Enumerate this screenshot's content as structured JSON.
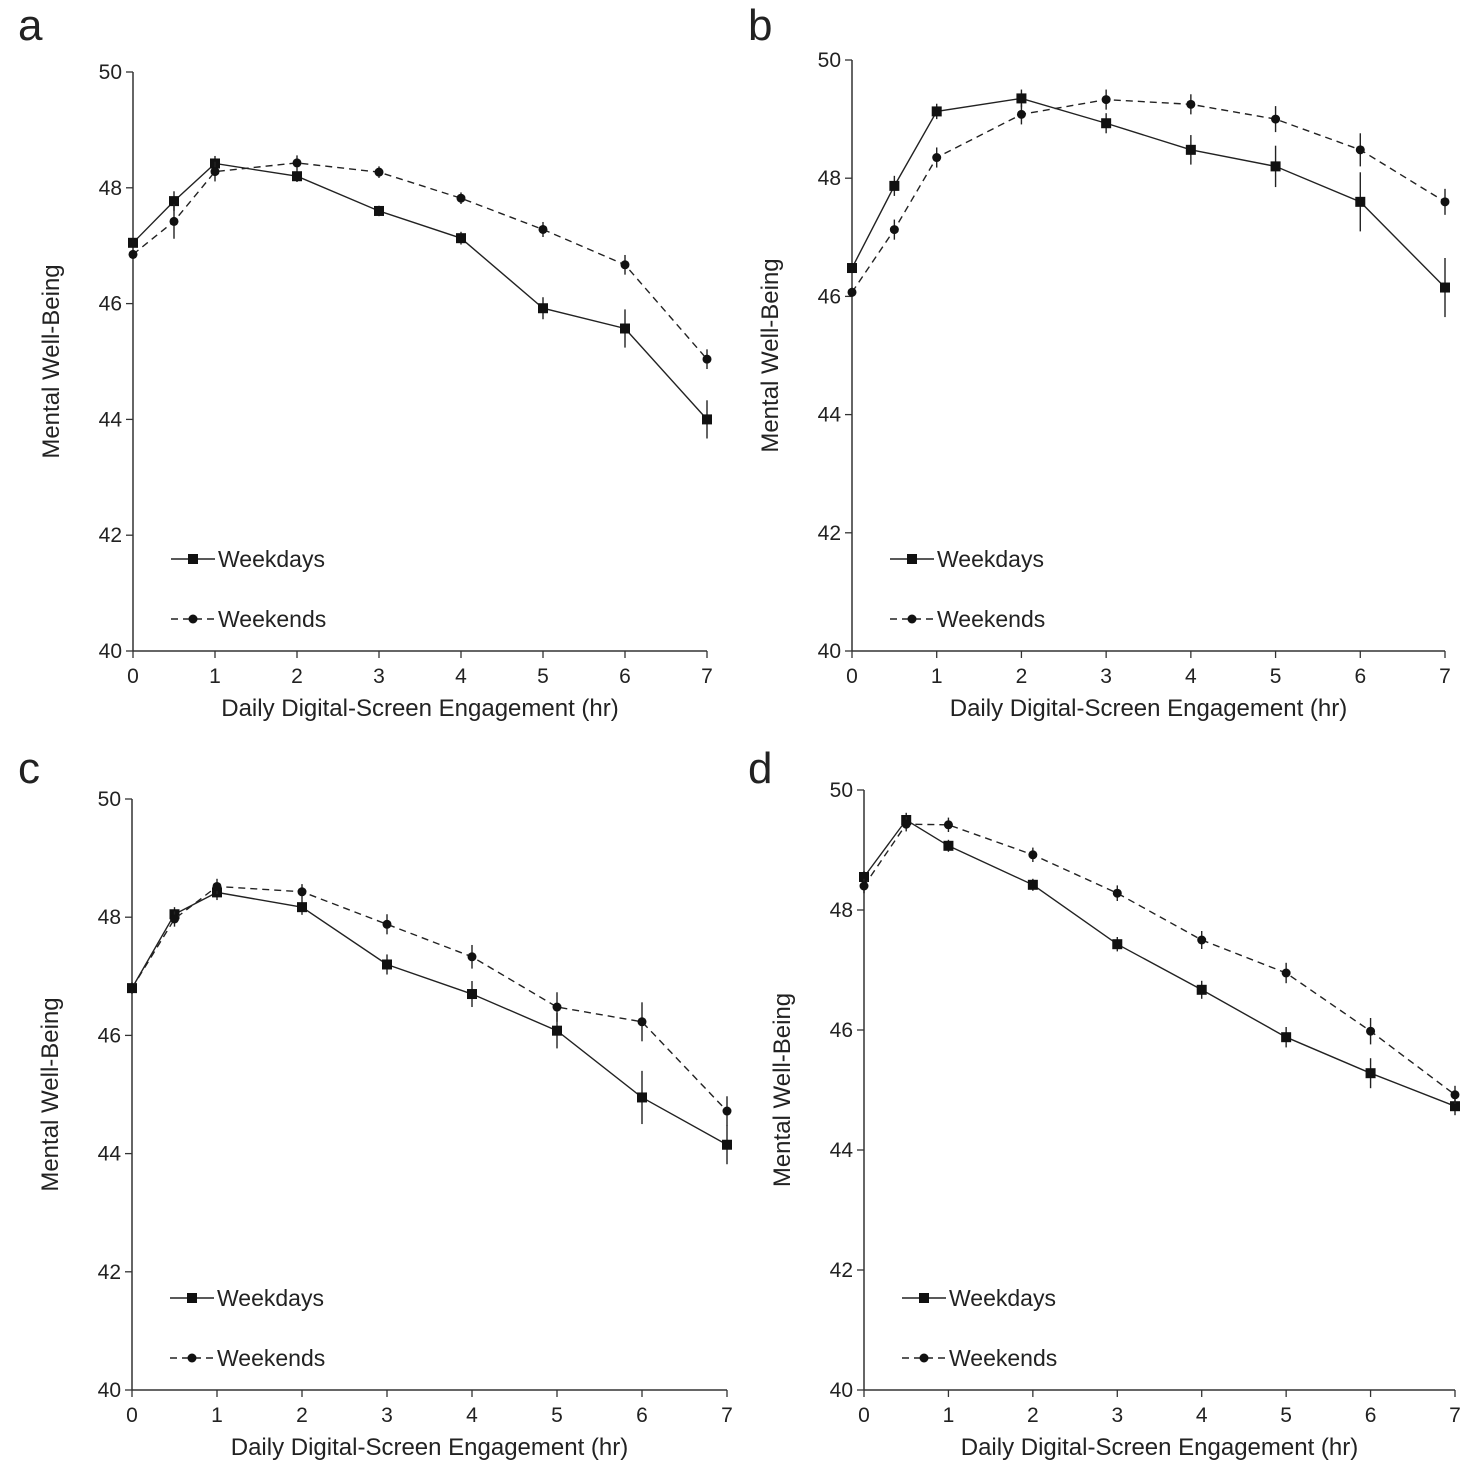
{
  "figure": {
    "legend": {
      "weekdays": "Weekdays",
      "weekends": "Weekends"
    }
  },
  "chart_data": [
    {
      "panel": "a",
      "type": "line",
      "xlabel": "Daily Digital-Screen Engagement (hr)",
      "ylabel": "Mental Well-Being",
      "xlim": [
        0,
        7
      ],
      "ylim": [
        40,
        50
      ],
      "x_ticks": [
        0,
        1,
        2,
        3,
        4,
        5,
        6,
        7
      ],
      "y_ticks": [
        40,
        42,
        44,
        46,
        48,
        50
      ],
      "legend_position": "bottom-left",
      "series": [
        {
          "name": "Weekdays",
          "style": "solid",
          "marker": "square",
          "x": [
            0,
            0.5,
            1,
            2,
            3,
            4,
            5,
            6,
            7
          ],
          "values": [
            47.05,
            47.77,
            48.42,
            48.2,
            47.6,
            47.13,
            45.92,
            45.57,
            44.0
          ],
          "errors": [
            0.08,
            0.17,
            0.13,
            0.1,
            0.09,
            0.11,
            0.19,
            0.33,
            0.33
          ]
        },
        {
          "name": "Weekends",
          "style": "dashed",
          "marker": "circle",
          "x": [
            0,
            0.5,
            1,
            2,
            3,
            4,
            5,
            6,
            7
          ],
          "values": [
            46.85,
            47.42,
            48.28,
            48.43,
            48.27,
            47.82,
            47.28,
            46.67,
            45.04
          ],
          "errors": [
            0.08,
            0.3,
            0.17,
            0.13,
            0.1,
            0.1,
            0.13,
            0.17,
            0.17
          ]
        }
      ]
    },
    {
      "panel": "b",
      "type": "line",
      "xlabel": "Daily Digital-Screen Engagement (hr)",
      "ylabel": "Mental Well-Being",
      "xlim": [
        0,
        7
      ],
      "ylim": [
        40,
        50
      ],
      "x_ticks": [
        0,
        1,
        2,
        3,
        4,
        5,
        6,
        7
      ],
      "y_ticks": [
        40,
        42,
        44,
        46,
        48,
        50
      ],
      "legend_position": "bottom-left",
      "series": [
        {
          "name": "Weekdays",
          "style": "solid",
          "marker": "square",
          "x": [
            0,
            0.5,
            1,
            2,
            3,
            4,
            5,
            6,
            7
          ],
          "values": [
            46.48,
            47.87,
            49.13,
            49.35,
            48.93,
            48.48,
            48.2,
            47.6,
            46.15
          ],
          "errors": [
            0.08,
            0.17,
            0.13,
            0.15,
            0.17,
            0.25,
            0.35,
            0.5,
            0.5
          ]
        },
        {
          "name": "Weekends",
          "style": "dashed",
          "marker": "circle",
          "x": [
            0,
            0.5,
            1,
            2,
            3,
            4,
            5,
            6,
            7
          ],
          "values": [
            46.07,
            47.13,
            48.35,
            49.08,
            49.33,
            49.25,
            49.0,
            48.48,
            47.6
          ],
          "errors": [
            0.08,
            0.17,
            0.17,
            0.17,
            0.17,
            0.17,
            0.22,
            0.28,
            0.22
          ]
        }
      ]
    },
    {
      "panel": "c",
      "type": "line",
      "xlabel": "Daily Digital-Screen Engagement (hr)",
      "ylabel": "Mental Well-Being",
      "xlim": [
        0,
        7
      ],
      "ylim": [
        40,
        50
      ],
      "x_ticks": [
        0,
        1,
        2,
        3,
        4,
        5,
        6,
        7
      ],
      "y_ticks": [
        40,
        42,
        44,
        46,
        48,
        50
      ],
      "legend_position": "bottom-left",
      "series": [
        {
          "name": "Weekdays",
          "style": "solid",
          "marker": "square",
          "x": [
            0,
            0.5,
            1,
            2,
            3,
            4,
            5,
            6,
            7
          ],
          "values": [
            46.8,
            48.05,
            48.42,
            48.17,
            47.2,
            46.7,
            46.08,
            44.95,
            44.15
          ],
          "errors": [
            0.1,
            0.12,
            0.13,
            0.13,
            0.17,
            0.22,
            0.3,
            0.45,
            0.33
          ]
        },
        {
          "name": "Weekends",
          "style": "dashed",
          "marker": "circle",
          "x": [
            0,
            0.5,
            1,
            2,
            3,
            4,
            5,
            6,
            7
          ],
          "values": [
            46.8,
            47.97,
            48.52,
            48.43,
            47.88,
            47.33,
            46.48,
            46.23,
            44.72
          ],
          "errors": [
            0.08,
            0.13,
            0.13,
            0.13,
            0.17,
            0.2,
            0.25,
            0.33,
            0.25
          ]
        }
      ]
    },
    {
      "panel": "d",
      "type": "line",
      "xlabel": "Daily Digital-Screen Engagement (hr)",
      "ylabel": "Mental Well-Being",
      "xlim": [
        0,
        7
      ],
      "ylim": [
        40,
        50
      ],
      "x_ticks": [
        0,
        1,
        2,
        3,
        4,
        5,
        6,
        7
      ],
      "y_ticks": [
        40,
        42,
        44,
        46,
        48,
        50
      ],
      "legend_position": "bottom-left",
      "series": [
        {
          "name": "Weekdays",
          "style": "solid",
          "marker": "square",
          "x": [
            0,
            0.5,
            1,
            2,
            3,
            4,
            5,
            6,
            7
          ],
          "values": [
            48.55,
            49.5,
            49.07,
            48.42,
            47.43,
            46.67,
            45.88,
            45.28,
            44.73
          ],
          "errors": [
            0.1,
            0.12,
            0.1,
            0.1,
            0.12,
            0.15,
            0.17,
            0.25,
            0.15
          ]
        },
        {
          "name": "Weekends",
          "style": "dashed",
          "marker": "circle",
          "x": [
            0,
            0.5,
            1,
            2,
            3,
            4,
            5,
            6,
            7
          ],
          "values": [
            48.4,
            49.43,
            49.42,
            48.92,
            48.28,
            47.5,
            46.95,
            45.98,
            44.92
          ],
          "errors": [
            0.12,
            0.12,
            0.12,
            0.12,
            0.13,
            0.15,
            0.17,
            0.22,
            0.15
          ]
        }
      ]
    }
  ]
}
